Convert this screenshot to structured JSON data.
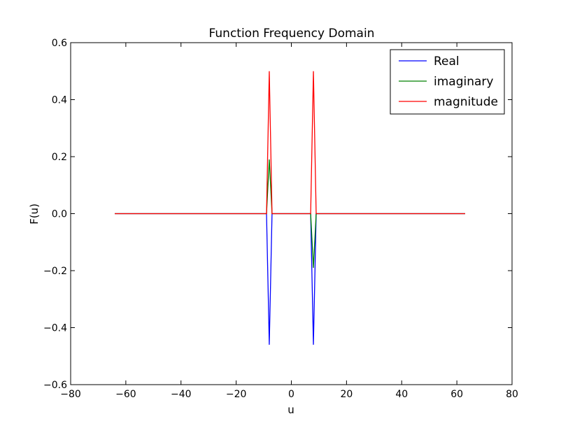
{
  "chart_data": {
    "type": "line",
    "title": "Function Frequency Domain",
    "xlabel": "u",
    "ylabel": "F(u)",
    "xlim": [
      -80,
      80
    ],
    "ylim": [
      -0.6,
      0.6
    ],
    "xticks": [
      -80,
      -60,
      -40,
      -20,
      0,
      20,
      40,
      60,
      80
    ],
    "yticks": [
      -0.6,
      -0.4,
      -0.2,
      0.0,
      0.2,
      0.4,
      0.6
    ],
    "xtick_labels": [
      "−80",
      "−60",
      "−40",
      "−20",
      "0",
      "20",
      "40",
      "60",
      "80"
    ],
    "ytick_labels": [
      "−0.6",
      "−0.4",
      "−0.2",
      "0.0",
      "0.2",
      "0.4",
      "0.6"
    ],
    "grid": false,
    "legend_position": "top-right",
    "series": [
      {
        "name": "Real",
        "color": "#0000ff",
        "x": [
          -64,
          -10,
          -9,
          -8,
          -7,
          -6,
          6,
          7,
          8,
          9,
          10,
          63
        ],
        "y": [
          0,
          0,
          0,
          -0.46,
          0,
          0,
          0,
          0,
          -0.46,
          0,
          0,
          0
        ]
      },
      {
        "name": "imaginary",
        "color": "#008000",
        "x": [
          -64,
          -10,
          -9,
          -8,
          -7,
          -6,
          6,
          7,
          8,
          9,
          10,
          63
        ],
        "y": [
          0,
          0,
          0,
          0.19,
          0,
          0,
          0,
          0,
          -0.19,
          0,
          0,
          0
        ]
      },
      {
        "name": "magnitude",
        "color": "#ff0000",
        "x": [
          -64,
          -10,
          -9,
          -8,
          -7,
          -6,
          6,
          7,
          8,
          9,
          10,
          63
        ],
        "y": [
          0,
          0,
          0,
          0.5,
          0,
          0,
          0,
          0,
          0.5,
          0,
          0,
          0
        ]
      }
    ]
  }
}
